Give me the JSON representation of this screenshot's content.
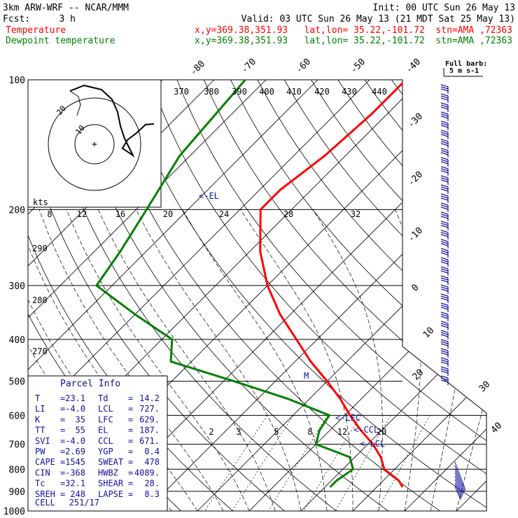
{
  "header": {
    "model": "3km ARW-WRF -- NCAR/MMM",
    "init": "Init: 00 UTC Sun 26 May 13",
    "fcst_label": "Fcst:",
    "fcst_value": "3 h",
    "valid": "Valid: 03 UTC Sun 26 May 13 (21 MDT Sat 25 May 13)",
    "temp_label": "Temperature",
    "temp_info": "x,y=369.38,351.93   lat,lon= 35.22,-101.72  stn=AMA ,72363",
    "dew_label": "Dewpoint temperature",
    "dew_info": "x,y=369.38,351.93   lat,lon= 35.22,-101.72  stn=AMA ,72363"
  },
  "colors": {
    "temperature": "#ff0000",
    "dewpoint": "#008000",
    "wind": "#1010a0",
    "parcel_text": "#1010a0",
    "axes": "#000000"
  },
  "chart_data": {
    "type": "skew-t",
    "pressure_levels": [
      100,
      200,
      300,
      400,
      500,
      600,
      700,
      800,
      900,
      1000
    ],
    "pressure_labels": [
      "100",
      "200",
      "300",
      "400",
      "500",
      "600",
      "700",
      "800",
      "900",
      "1000"
    ],
    "pressure_range_mb": [
      100,
      1000
    ],
    "isotherm_labels": [
      "-80",
      "-70",
      "-60",
      "-50",
      "-40",
      "-30",
      "-20",
      "-10",
      "0",
      "10",
      "20",
      "30",
      "40"
    ],
    "theta_labels": [
      "370",
      "380",
      "390",
      "400",
      "410",
      "420",
      "430",
      "440"
    ],
    "dry_adiabat_labels": [
      "290",
      "280",
      "270"
    ],
    "mixing_ratio_labels": [
      "2",
      "3",
      "5",
      "8",
      "12",
      "20"
    ],
    "hodograph": {
      "units": "kts",
      "ring_labels": [
        "20",
        "10"
      ],
      "speed_labels": [
        "8",
        "12",
        "16",
        "20",
        "24",
        "28",
        "32"
      ]
    },
    "annotations": {
      "el": "<-EL",
      "lfc": "<-LFC",
      "ccl": "<-CCL",
      "lcl": "<-LCL",
      "m_marker": "M"
    },
    "wind_legend": {
      "title": "Full barb:",
      "value": "5 m s-1"
    },
    "series": [
      {
        "name": "Temperature",
        "points": [
          {
            "p": 100,
            "t": -53
          },
          {
            "p": 120,
            "t": -53
          },
          {
            "p": 150,
            "t": -54
          },
          {
            "p": 180,
            "t": -56
          },
          {
            "p": 200,
            "t": -56
          },
          {
            "p": 250,
            "t": -48
          },
          {
            "p": 300,
            "t": -40
          },
          {
            "p": 350,
            "t": -32
          },
          {
            "p": 400,
            "t": -24
          },
          {
            "p": 450,
            "t": -17
          },
          {
            "p": 500,
            "t": -10
          },
          {
            "p": 550,
            "t": -4
          },
          {
            "p": 600,
            "t": 1
          },
          {
            "p": 650,
            "t": 6
          },
          {
            "p": 700,
            "t": 11
          },
          {
            "p": 750,
            "t": 15
          },
          {
            "p": 800,
            "t": 18
          },
          {
            "p": 850,
            "t": 23
          },
          {
            "p": 880,
            "t": 25
          }
        ]
      },
      {
        "name": "Dewpoint temperature",
        "points": [
          {
            "p": 100,
            "t": -84
          },
          {
            "p": 150,
            "t": -82
          },
          {
            "p": 200,
            "t": -78
          },
          {
            "p": 250,
            "t": -75
          },
          {
            "p": 300,
            "t": -73
          },
          {
            "p": 350,
            "t": -60
          },
          {
            "p": 400,
            "t": -48
          },
          {
            "p": 450,
            "t": -44
          },
          {
            "p": 500,
            "t": -28
          },
          {
            "p": 550,
            "t": -14
          },
          {
            "p": 600,
            "t": -3
          },
          {
            "p": 650,
            "t": -2
          },
          {
            "p": 700,
            "t": 0
          },
          {
            "p": 750,
            "t": 9
          },
          {
            "p": 800,
            "t": 12
          },
          {
            "p": 850,
            "t": 11
          },
          {
            "p": 880,
            "t": 11
          }
        ]
      }
    ]
  },
  "parcel_info": {
    "title": "Parcel Info",
    "rows": [
      {
        "k1": "T",
        "v1": "23.1",
        "k2": "Td",
        "v2": "14.2"
      },
      {
        "k1": "LI",
        "v1": "-4.0",
        "k2": "LCL",
        "v2": "727."
      },
      {
        "k1": "K",
        "v1": "35",
        "k2": "LFC",
        "v2": "629."
      },
      {
        "k1": "TT",
        "v1": "55",
        "k2": "EL",
        "v2": "187."
      },
      {
        "k1": "SVI",
        "v1": "-4.0",
        "k2": "CCL",
        "v2": "671."
      },
      {
        "k1": "PW",
        "v1": "2.69",
        "k2": "YGP",
        "v2": "0.4"
      },
      {
        "k1": "CAPE",
        "v1": "1545",
        "k2": "SWEAT",
        "v2": "478"
      },
      {
        "k1": "CIN",
        "v1": "-368",
        "k2": "HWBZ",
        "v2": "4089."
      },
      {
        "k1": "Tc",
        "v1": "32.1",
        "k2": "SHEAR",
        "v2": "28."
      },
      {
        "k1": "SREH",
        "v1": "248",
        "k2": "LAPSE",
        "v2": "8.3"
      }
    ],
    "cell_label": "CELL",
    "cell_value": "251/17"
  }
}
